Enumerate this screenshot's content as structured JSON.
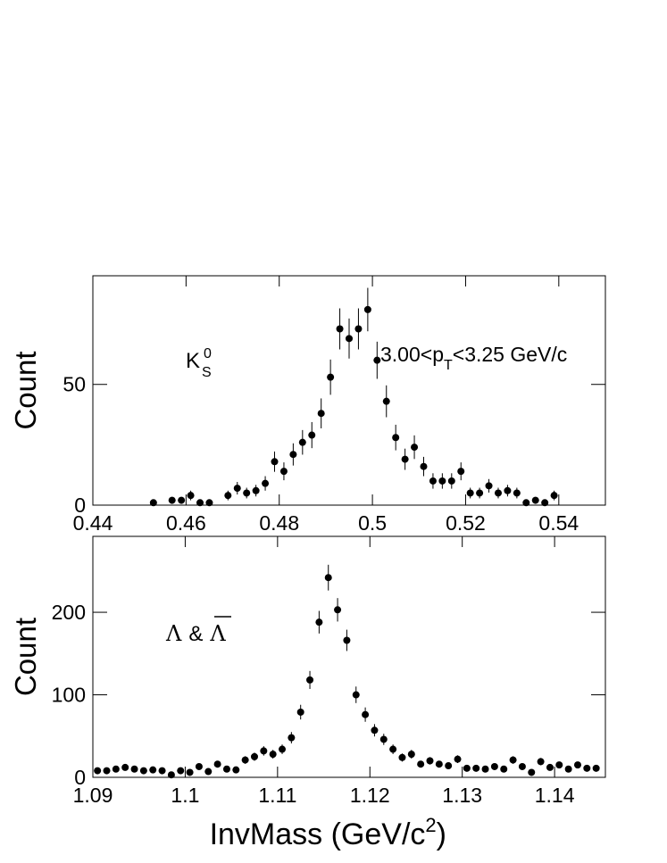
{
  "chart_data": [
    {
      "type": "errorbar",
      "ylabel": "Count",
      "particle": {
        "base": "K",
        "sub": "S",
        "sup": "0"
      },
      "range_label": {
        "pre": "3.00<p",
        "sub": "T",
        "post": "<3.25 GeV/c"
      },
      "color": "#000000",
      "x": [
        0.453,
        0.457,
        0.459,
        0.461,
        0.463,
        0.465,
        0.469,
        0.471,
        0.473,
        0.475,
        0.477,
        0.479,
        0.481,
        0.483,
        0.485,
        0.487,
        0.489,
        0.491,
        0.493,
        0.495,
        0.497,
        0.499,
        0.501,
        0.503,
        0.505,
        0.507,
        0.509,
        0.511,
        0.513,
        0.515,
        0.517,
        0.519,
        0.521,
        0.523,
        0.525,
        0.527,
        0.529,
        0.531,
        0.533,
        0.535,
        0.537,
        0.539
      ],
      "values": [
        1,
        2,
        2,
        4,
        1,
        1,
        4,
        7,
        5,
        6,
        9,
        18,
        14,
        21,
        26,
        29,
        38,
        53,
        73,
        69,
        73,
        81,
        60,
        43,
        28,
        19,
        24,
        16,
        10,
        10,
        10,
        14,
        5,
        5,
        8,
        5,
        6,
        5,
        1,
        2,
        1,
        4
      ],
      "errors": [
        1,
        1.4,
        1.4,
        2,
        1,
        1,
        2,
        2.6,
        2.2,
        2.4,
        3,
        4.2,
        3.7,
        4.6,
        5.1,
        5.4,
        6.2,
        7.3,
        8.5,
        8.3,
        8.5,
        9,
        7.7,
        6.6,
        5.3,
        4.4,
        4.9,
        4,
        3.2,
        3.2,
        3.2,
        3.7,
        2.2,
        2.2,
        2.8,
        2.2,
        2.4,
        2.2,
        1,
        1.4,
        1,
        2
      ],
      "xlim": [
        0.44,
        0.55
      ],
      "ylim": [
        0,
        95
      ],
      "xticks": [
        0.44,
        0.46,
        0.48,
        0.5,
        0.52,
        0.54
      ],
      "yticks": [
        0,
        50
      ]
    },
    {
      "type": "errorbar",
      "ylabel": "Count",
      "xlabel": {
        "pre": "InvMass (GeV/c",
        "sup": "2",
        "post": ")"
      },
      "particle": {
        "first": "Λ",
        "amp": "&",
        "second": "Λ"
      },
      "color": "#000000",
      "x": [
        1.0905,
        1.0915,
        1.0925,
        1.0935,
        1.0945,
        1.0955,
        1.0965,
        1.0975,
        1.0985,
        1.0995,
        1.1005,
        1.1015,
        1.1025,
        1.1035,
        1.1045,
        1.1055,
        1.1065,
        1.1075,
        1.1085,
        1.1095,
        1.1105,
        1.1115,
        1.1125,
        1.1135,
        1.1145,
        1.1155,
        1.1165,
        1.1175,
        1.1185,
        1.1195,
        1.1205,
        1.1215,
        1.1225,
        1.1235,
        1.1245,
        1.1255,
        1.1265,
        1.1275,
        1.1285,
        1.1295,
        1.1305,
        1.1315,
        1.1325,
        1.1335,
        1.1345,
        1.1355,
        1.1365,
        1.1375,
        1.1385,
        1.1395,
        1.1405,
        1.1415,
        1.1425,
        1.1435,
        1.1445
      ],
      "values": [
        8,
        8,
        10,
        12,
        10,
        8,
        9,
        8,
        3,
        8,
        6,
        13,
        7,
        16,
        10,
        9,
        21,
        25,
        32,
        28,
        34,
        48,
        79,
        118,
        188,
        242,
        203,
        166,
        100,
        76,
        57,
        46,
        34,
        24,
        28,
        16,
        20,
        16,
        14,
        22,
        11,
        11,
        10,
        13,
        10,
        21,
        13,
        6,
        19,
        12,
        15,
        10,
        15,
        11,
        11
      ],
      "errors": [
        2.8,
        2.8,
        3.2,
        3.5,
        3.2,
        2.8,
        3,
        2.8,
        1.7,
        2.8,
        2.4,
        3.6,
        2.6,
        4,
        3.2,
        3,
        4.6,
        5,
        5.7,
        5.3,
        5.8,
        6.9,
        8.9,
        10.9,
        13.7,
        15.6,
        14.2,
        12.9,
        10,
        8.7,
        7.5,
        6.8,
        5.8,
        4.9,
        5.3,
        4,
        4.5,
        4,
        3.7,
        4.7,
        3.3,
        3.3,
        3.2,
        3.6,
        3.2,
        4.6,
        3.6,
        2.4,
        4.4,
        3.5,
        3.9,
        3.2,
        3.9,
        3.3,
        3.3
      ],
      "xlim": [
        1.09,
        1.1455
      ],
      "ylim": [
        0,
        292
      ],
      "xticks": [
        1.09,
        1.1,
        1.11,
        1.12,
        1.13,
        1.14
      ],
      "yticks": [
        0,
        100,
        200
      ]
    }
  ]
}
